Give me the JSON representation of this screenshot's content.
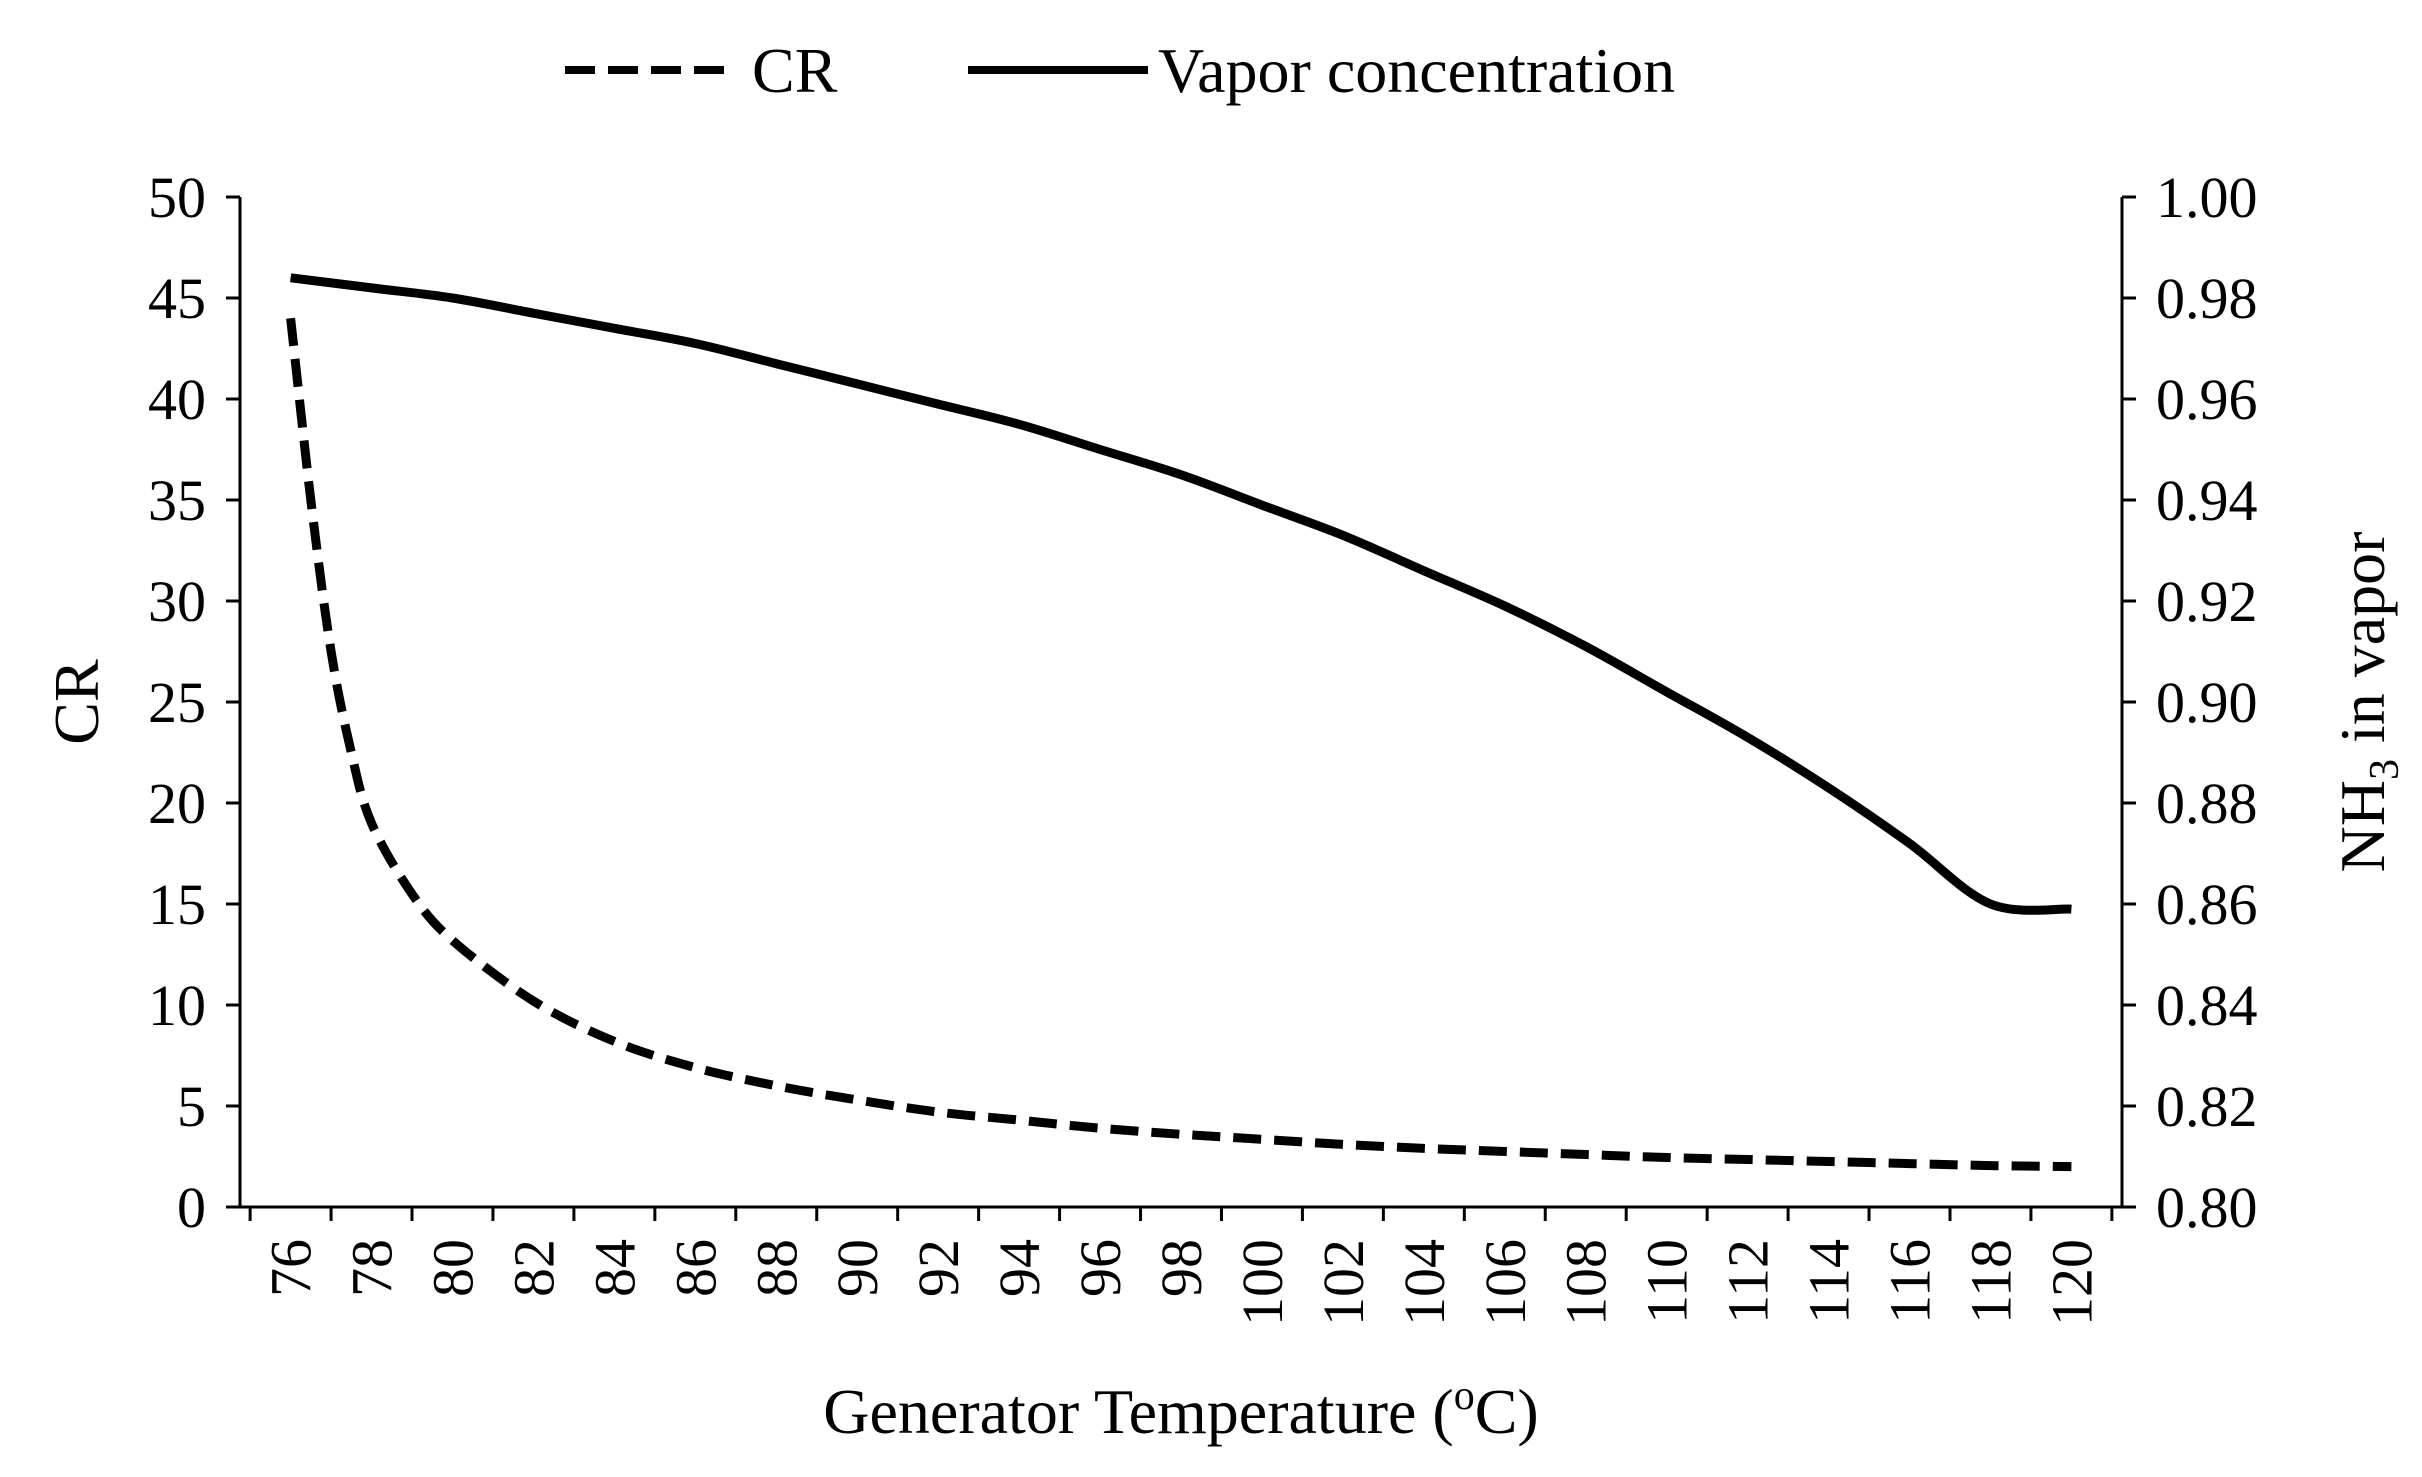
{
  "chart_data": {
    "type": "line",
    "title": "",
    "xlabel": "Generator Temperature (°C)",
    "xlabel_parts": {
      "before": "Generator Temperature (",
      "sup": "o",
      "after": "C)"
    },
    "ylabel_left": "CR",
    "ylabel_right": "NH3 in vapor",
    "ylabel_right_parts": {
      "before": "NH",
      "sub": "3",
      "after": " in vapor"
    },
    "x_ticks": [
      "76",
      "78",
      "80",
      "82",
      "84",
      "86",
      "88",
      "90",
      "92",
      "94",
      "96",
      "98",
      "100",
      "102",
      "104",
      "106",
      "108",
      "110",
      "112",
      "114",
      "116",
      "118",
      "120"
    ],
    "xlim": [
      74.75,
      121.25
    ],
    "y_left_ticks": [
      "0",
      "5",
      "10",
      "15",
      "20",
      "25",
      "30",
      "35",
      "40",
      "45",
      "50"
    ],
    "y_left_lim": [
      0,
      50
    ],
    "y_right_ticks": [
      "0.80",
      "0.82",
      "0.84",
      "0.86",
      "0.88",
      "0.90",
      "0.92",
      "0.94",
      "0.96",
      "0.98",
      "1.00"
    ],
    "y_right_lim": [
      0.8,
      1.0
    ],
    "grid": false,
    "legend_position": "top-center",
    "series": [
      {
        "name": "CR",
        "axis": "left",
        "style": "dashed",
        "x": [
          76,
          76.5,
          77,
          77.5,
          78,
          79,
          80,
          82,
          84,
          86,
          88,
          90,
          92,
          94,
          96,
          98,
          100,
          102,
          104,
          106,
          108,
          110,
          112,
          114,
          116,
          118,
          120
        ],
        "values": [
          44,
          35,
          27.5,
          22.5,
          19,
          15.5,
          13.2,
          10.2,
          8.2,
          6.9,
          6.0,
          5.3,
          4.7,
          4.3,
          3.9,
          3.6,
          3.35,
          3.1,
          2.9,
          2.75,
          2.6,
          2.45,
          2.35,
          2.25,
          2.15,
          2.05,
          2.0
        ]
      },
      {
        "name": "Vapor concentration",
        "axis": "right",
        "style": "solid",
        "x": [
          76,
          78,
          80,
          82,
          84,
          86,
          88,
          90,
          92,
          94,
          96,
          98,
          100,
          102,
          104,
          106,
          108,
          110,
          112,
          114,
          116,
          118,
          120
        ],
        "values": [
          0.984,
          0.982,
          0.98,
          0.977,
          0.974,
          0.971,
          0.967,
          0.963,
          0.959,
          0.955,
          0.95,
          0.945,
          0.939,
          0.933,
          0.926,
          0.919,
          0.911,
          0.902,
          0.893,
          0.883,
          0.872,
          0.86,
          0.859
        ]
      }
    ]
  }
}
